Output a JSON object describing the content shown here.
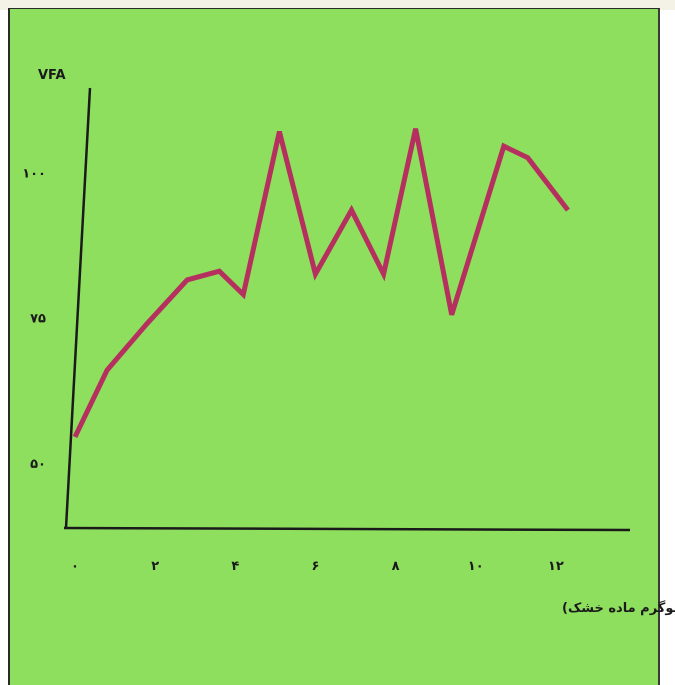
{
  "chart_data": {
    "type": "line",
    "title": "",
    "ylabel": "VFA",
    "xlabel": "جذب کنسانتره (کیلوگرم ماده خشک)",
    "x_ticks": [
      {
        "value": 0,
        "label": "۰"
      },
      {
        "value": 2,
        "label": "۲"
      },
      {
        "value": 4,
        "label": "۴"
      },
      {
        "value": 6,
        "label": "۶"
      },
      {
        "value": 8,
        "label": "۸"
      },
      {
        "value": 10,
        "label": "۱۰"
      },
      {
        "value": 12,
        "label": "۱۲"
      }
    ],
    "y_ticks": [
      {
        "value": 50,
        "label": "۵۰"
      },
      {
        "value": 75,
        "label": "۷۵"
      },
      {
        "value": 100,
        "label": "۱۰۰"
      }
    ],
    "xlim": [
      -0.3,
      13.9
    ],
    "ylim": [
      38.5,
      114.5
    ],
    "grid": false,
    "series": [
      {
        "color": "#b5305f",
        "points": [
          {
            "x": 0.0,
            "y": 54.5
          },
          {
            "x": 0.8,
            "y": 66
          },
          {
            "x": 1.8,
            "y": 74
          },
          {
            "x": 2.8,
            "y": 81.5
          },
          {
            "x": 3.6,
            "y": 83
          },
          {
            "x": 4.2,
            "y": 79
          },
          {
            "x": 5.1,
            "y": 107
          },
          {
            "x": 6.0,
            "y": 82.5
          },
          {
            "x": 6.9,
            "y": 93.5
          },
          {
            "x": 7.7,
            "y": 82.5
          },
          {
            "x": 8.5,
            "y": 107.5
          },
          {
            "x": 9.4,
            "y": 75.5
          },
          {
            "x": 10.7,
            "y": 104.5
          },
          {
            "x": 11.3,
            "y": 102.5
          },
          {
            "x": 12.3,
            "y": 93.5
          }
        ]
      }
    ]
  }
}
